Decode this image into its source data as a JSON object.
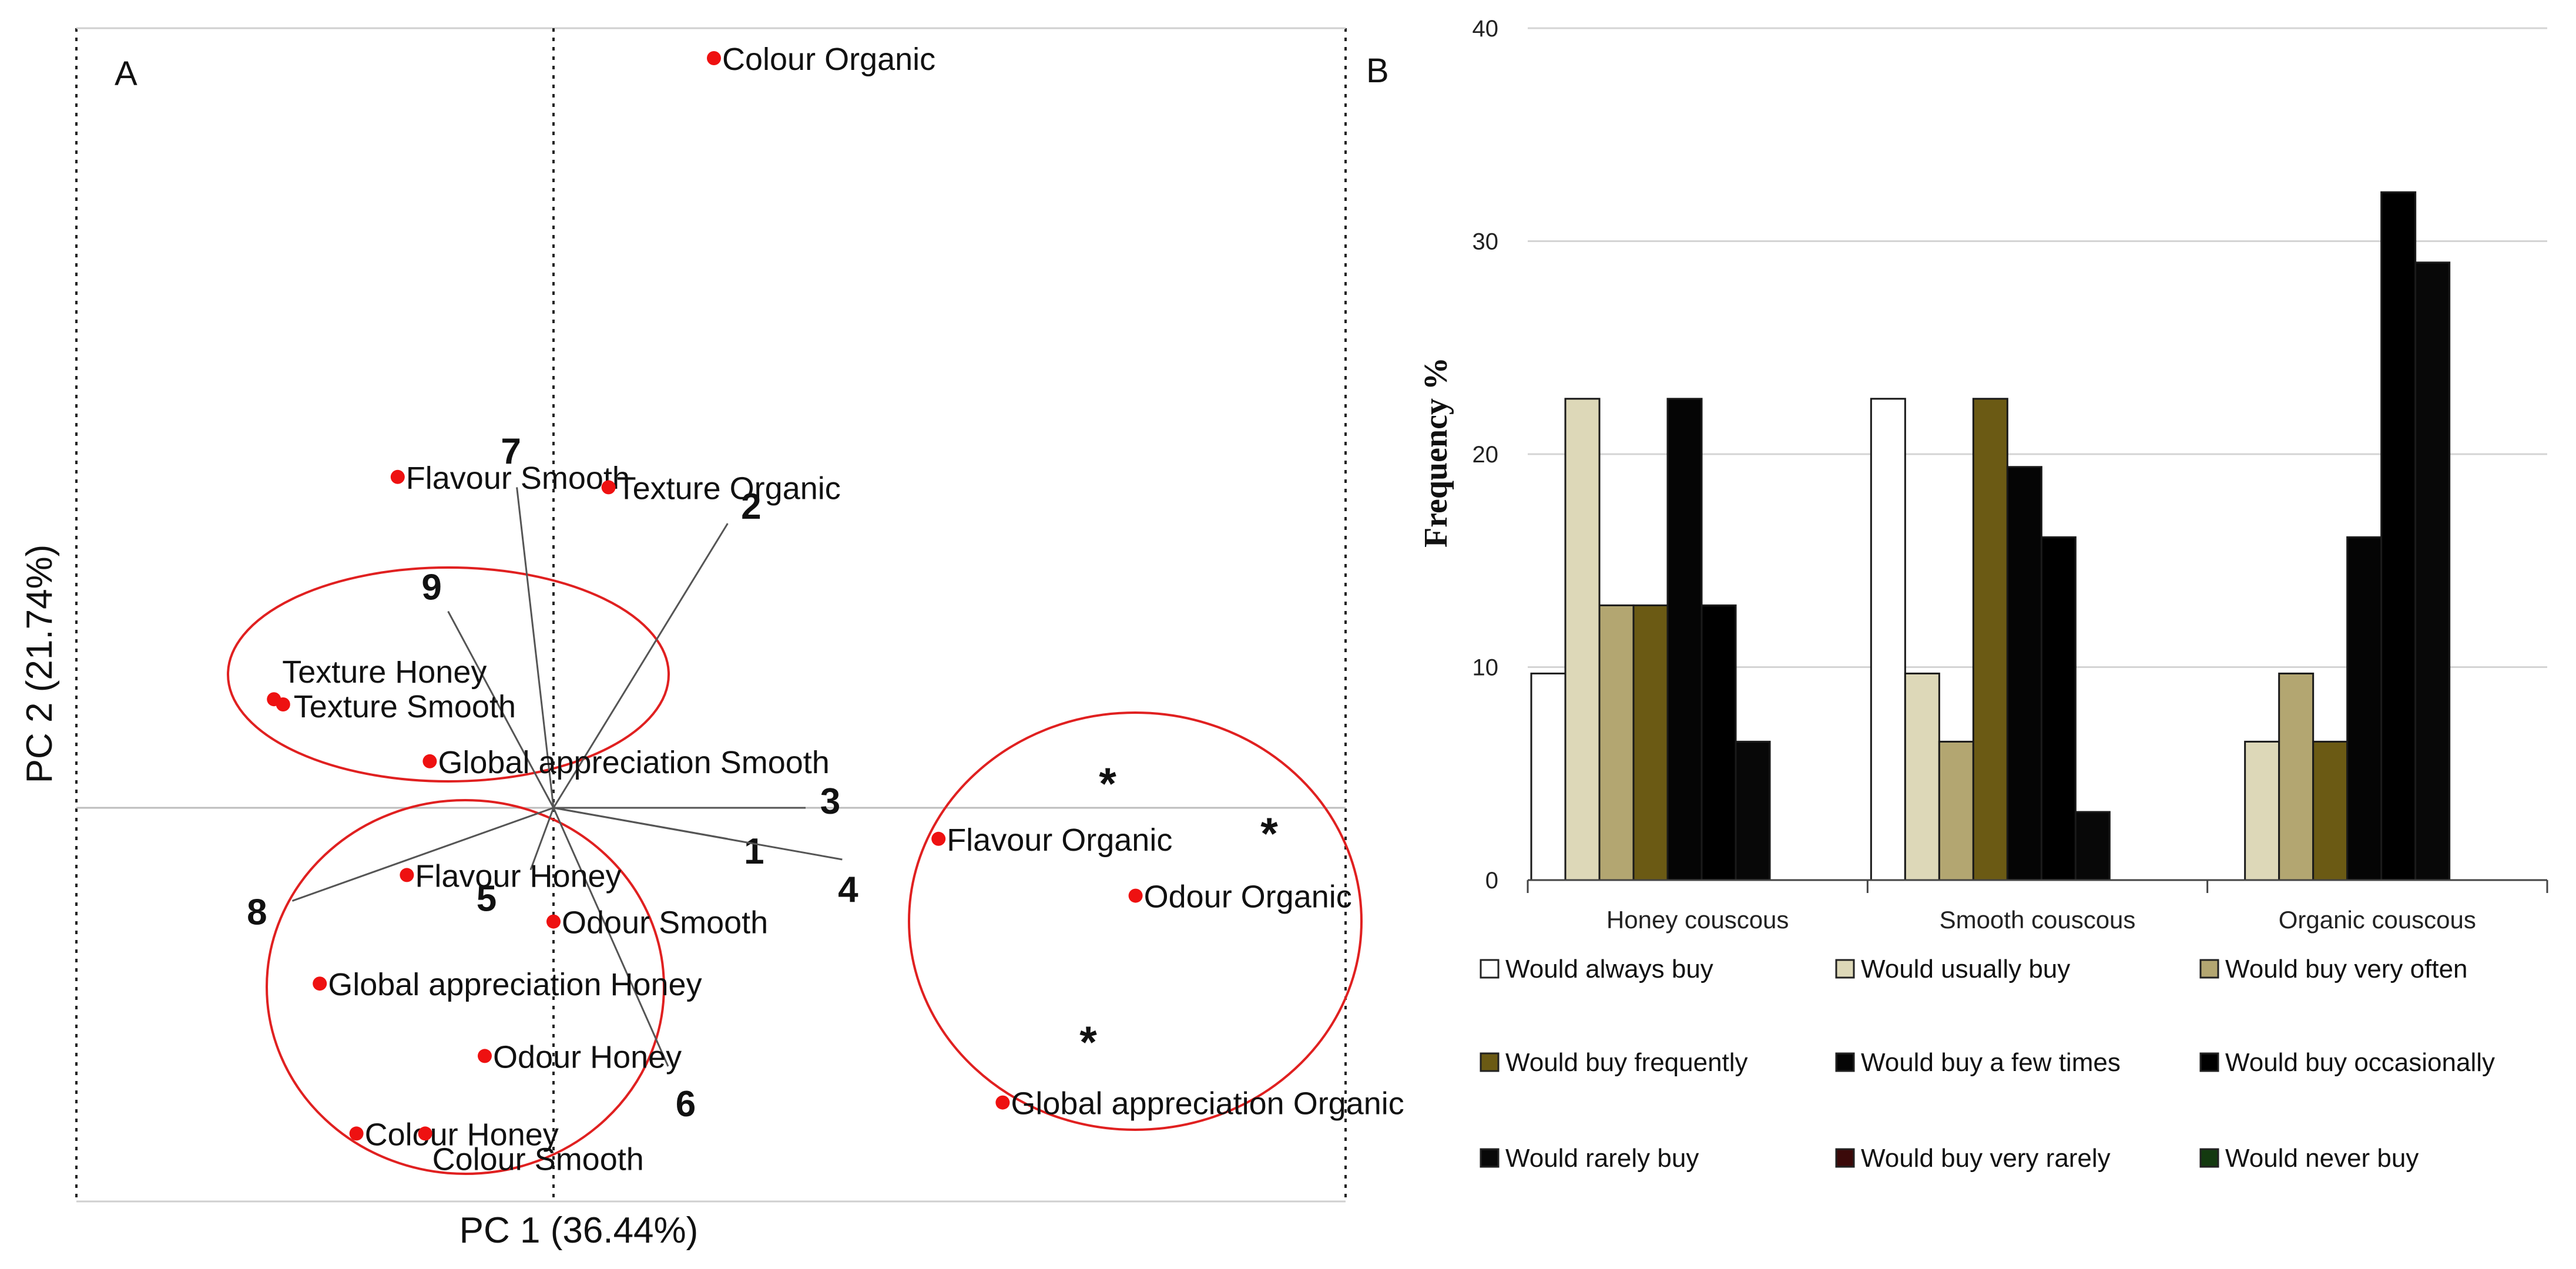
{
  "panel_a_label": "A",
  "panel_b_label": "B",
  "chart_data": [
    {
      "type": "scatter",
      "panel": "A",
      "xlabel": "PC 1 (36.44%)",
      "ylabel": "PC 2 (21.74%)",
      "xlim": [
        -1.0,
        1.65
      ],
      "ylim": [
        -0.82,
        1.62
      ],
      "points": [
        {
          "label": "Colour Organic",
          "x": 0.35,
          "y": 1.45
        },
        {
          "label": "Flavour Smooth",
          "x": -0.34,
          "y": 0.64
        },
        {
          "label": "Texture Organic",
          "x": 0.12,
          "y": 0.62
        },
        {
          "label": "Texture Honey",
          "x": -0.61,
          "y": 0.21
        },
        {
          "label": "Texture Smooth",
          "x": -0.59,
          "y": 0.2
        },
        {
          "label": "Global appreciation Smooth",
          "x": -0.27,
          "y": 0.09
        },
        {
          "label": "Flavour Honey",
          "x": -0.32,
          "y": -0.13
        },
        {
          "label": "Odour Smooth",
          "x": 0.0,
          "y": -0.22
        },
        {
          "label": "Global appreciation Honey",
          "x": -0.51,
          "y": -0.34
        },
        {
          "label": "Odour Honey",
          "x": -0.15,
          "y": -0.48
        },
        {
          "label": "Colour Honey",
          "x": -0.43,
          "y": -0.63
        },
        {
          "label": "Colour Smooth",
          "x": -0.28,
          "y": -0.63
        },
        {
          "label": "Flavour Organic",
          "x": 0.84,
          "y": -0.06
        },
        {
          "label": "Odour Organic",
          "x": 1.27,
          "y": -0.17
        },
        {
          "label": "Global appreciation Organic",
          "x": 0.98,
          "y": -0.57
        }
      ],
      "loadings": [
        {
          "label": "1",
          "x": 0.38,
          "y": -0.06
        },
        {
          "label": "2",
          "x": 0.38,
          "y": 0.55
        },
        {
          "label": "3",
          "x": 0.55,
          "y": 0.0
        },
        {
          "label": "4",
          "x": 0.63,
          "y": -0.1
        },
        {
          "label": "5",
          "x": -0.05,
          "y": -0.12
        },
        {
          "label": "6",
          "x": 0.25,
          "y": -0.5
        },
        {
          "label": "7",
          "x": -0.08,
          "y": 0.62
        },
        {
          "label": "8",
          "x": -0.57,
          "y": -0.18
        },
        {
          "label": "9",
          "x": -0.23,
          "y": 0.38
        }
      ],
      "annotations": [
        "*",
        "*",
        "*"
      ]
    },
    {
      "type": "bar",
      "panel": "B",
      "title": "",
      "xlabel": "",
      "ylabel": "Frequency %",
      "ylim": [
        0,
        40
      ],
      "yticks": [
        0,
        10,
        20,
        30,
        40
      ],
      "categories": [
        "Honey couscous",
        "Smooth couscous",
        "Organic couscous"
      ],
      "legend_location": "bottom",
      "series": [
        {
          "name": "Would always buy",
          "color": "#ffffff",
          "values": [
            9.7,
            22.6,
            0
          ]
        },
        {
          "name": "Would usually buy",
          "color": "#ddd8b8",
          "values": [
            22.6,
            9.7,
            6.5
          ]
        },
        {
          "name": "Would buy very often",
          "color": "#b3a671",
          "values": [
            12.9,
            6.5,
            9.7
          ]
        },
        {
          "name": "Would buy frequently",
          "color": "#6b5a14",
          "values": [
            12.9,
            22.6,
            6.5
          ]
        },
        {
          "name": "Would buy a few times",
          "color": "#050505",
          "values": [
            22.6,
            19.4,
            16.1
          ]
        },
        {
          "name": "Would buy occasionally",
          "color": "#000000",
          "values": [
            12.9,
            16.1,
            32.3
          ]
        },
        {
          "name": "Would rarely buy",
          "color": "#080808",
          "values": [
            6.5,
            3.2,
            29.0
          ]
        },
        {
          "name": "Would buy very rarely",
          "color": "#3b0a0a",
          "values": [
            0,
            0,
            0
          ]
        },
        {
          "name": "Would never buy",
          "color": "#143a10",
          "values": [
            0,
            0,
            0
          ]
        }
      ]
    }
  ]
}
